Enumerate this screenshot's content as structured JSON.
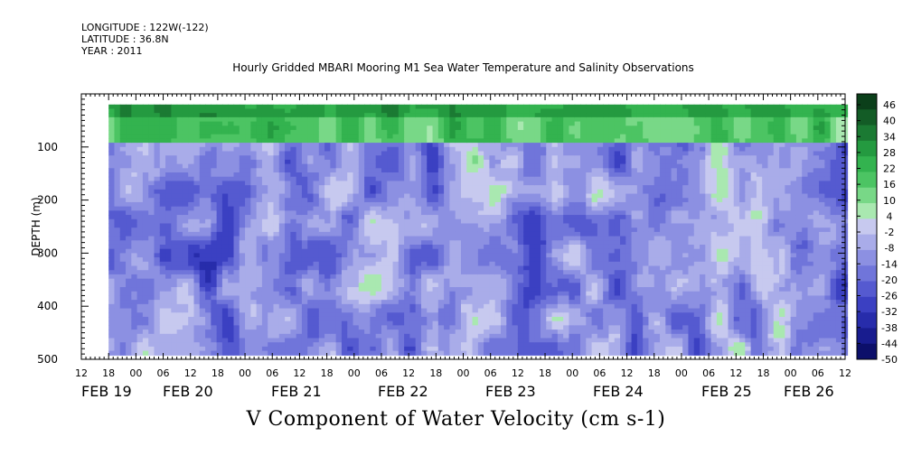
{
  "header": {
    "longitude": "LONGITUDE : 122W(-122)",
    "latitude": "LATITUDE : 36.8N",
    "year": "YEAR : 2011"
  },
  "chart_data": {
    "type": "heatmap",
    "title": "Hourly Gridded MBARI Mooring M1 Sea Water Temperature and Salinity Observations",
    "xlabel": "V Component of Water Velocity (cm s-1)",
    "ylabel": "DEPTH (m)",
    "y_range": [
      500,
      0
    ],
    "y_ticks": [
      100,
      200,
      300,
      400,
      500
    ],
    "data_extent": {
      "start_hour": 18,
      "start_day": "FEB 19",
      "depth_min": 20,
      "depth_max": 487
    },
    "x_hour_ticks": [
      "12",
      "18",
      "00",
      "06",
      "12",
      "18",
      "00",
      "06",
      "12",
      "18",
      "00",
      "06",
      "12",
      "18",
      "00",
      "06",
      "12",
      "18",
      "00",
      "06",
      "12",
      "18",
      "00",
      "06",
      "12",
      "18",
      "00",
      "06",
      "12"
    ],
    "x_day_labels": [
      "FEB 19",
      "FEB 20",
      "FEB 21",
      "FEB 22",
      "FEB 23",
      "FEB 24",
      "FEB 25",
      "FEB 26"
    ],
    "colorbar": {
      "labels": [
        "46",
        "40",
        "34",
        "28",
        "22",
        "16",
        "10",
        "4",
        "-2",
        "-8",
        "-14",
        "-20",
        "-26",
        "-32",
        "-38",
        "-44",
        "-50"
      ],
      "colors": [
        "#0b3f1a",
        "#135c26",
        "#1b7a33",
        "#249a40",
        "#33b34f",
        "#4cc463",
        "#78d887",
        "#a9e8b0",
        "#c7c9ef",
        "#a9ace9",
        "#8c90e2",
        "#7075da",
        "#555ad0",
        "#3b40c2",
        "#272cab",
        "#181c8f",
        "#0c0f6a"
      ],
      "range": [
        -50,
        50
      ]
    }
  }
}
